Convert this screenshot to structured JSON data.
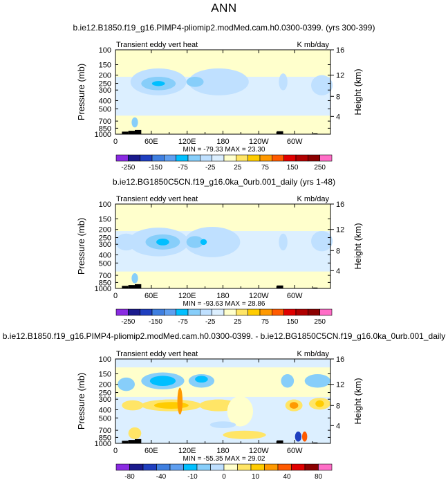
{
  "page": {
    "title": "ANN"
  },
  "chart_data": [
    {
      "type": "heatmap",
      "title": "b.ie12.B1850.f19_g16.PIMP4-pliomip2.modMed.cam.h0.0300-0399. (yrs 300-399)",
      "left_label": "Transient eddy vert heat",
      "right_label": "K mb/day",
      "ylabel": "Pressure (mb)",
      "ylabel_right": "Height (km)",
      "x_ticks": [
        "0",
        "60E",
        "120E",
        "180",
        "120W",
        "60W"
      ],
      "y_ticks": [
        "100",
        "150",
        "200",
        "250",
        "300",
        "400",
        "500",
        "700",
        "850",
        "1000"
      ],
      "y_right_ticks": [
        "16",
        "12",
        "8",
        "4"
      ],
      "stats": "MIN = -79.33   MAX = 23.30",
      "colorbar": {
        "labels": [
          "-250",
          "-150",
          "-75",
          "-25",
          "25",
          "75",
          "150",
          "250"
        ],
        "colors": [
          "#8a2be2",
          "#1a1a8c",
          "#1f3fbf",
          "#3f7fe0",
          "#5f9ff0",
          "#00bfff",
          "#87cefa",
          "#bfe0ff",
          "#dcefff",
          "#ffffcc",
          "#ffe566",
          "#ffcc00",
          "#ff9900",
          "#ff5a00",
          "#e00000",
          "#b00000",
          "#8b0000",
          "#ff6ec7"
        ]
      }
    },
    {
      "type": "heatmap",
      "title": "b.ie12.BG1850C5CN.f19_g16.0ka_0urb.001_daily (yrs 1-48)",
      "left_label": "Transient eddy vert heat",
      "right_label": "K mb/day",
      "ylabel": "Pressure (mb)",
      "ylabel_right": "Height (km)",
      "x_ticks": [
        "0",
        "60E",
        "120E",
        "180",
        "120W",
        "60W"
      ],
      "y_ticks": [
        "100",
        "150",
        "200",
        "250",
        "300",
        "400",
        "500",
        "700",
        "850",
        "1000"
      ],
      "y_right_ticks": [
        "16",
        "12",
        "8",
        "4"
      ],
      "stats": "MIN = -93.63   MAX = 28.86",
      "colorbar": {
        "labels": [
          "-250",
          "-150",
          "-75",
          "-25",
          "25",
          "75",
          "150",
          "250"
        ],
        "colors": [
          "#8a2be2",
          "#1a1a8c",
          "#1f3fbf",
          "#3f7fe0",
          "#5f9ff0",
          "#00bfff",
          "#87cefa",
          "#bfe0ff",
          "#dcefff",
          "#ffffcc",
          "#ffe566",
          "#ffcc00",
          "#ff9900",
          "#ff5a00",
          "#e00000",
          "#b00000",
          "#8b0000",
          "#ff6ec7"
        ]
      }
    },
    {
      "type": "heatmap",
      "title": "b.ie12.B1850.f19_g16.PIMP4-pliomip2.modMed.cam.h0.0300-0399. - b.ie12.BG1850C5CN.f19_g16.0ka_0urb.001_daily",
      "left_label": "Transient eddy vert heat",
      "right_label": "K mb/day",
      "ylabel": "Pressure (mb)",
      "ylabel_right": "Height (km)",
      "x_ticks": [
        "0",
        "60E",
        "120E",
        "180",
        "120W",
        "60W"
      ],
      "y_ticks": [
        "100",
        "150",
        "200",
        "250",
        "300",
        "400",
        "500",
        "700",
        "850",
        "1000"
      ],
      "y_right_ticks": [
        "16",
        "12",
        "8",
        "4"
      ],
      "stats": "MIN = -55.35   MAX = 29.02",
      "colorbar": {
        "labels": [
          "-80",
          "-40",
          "-10",
          "0",
          "10",
          "40",
          "80"
        ],
        "colors": [
          "#8a2be2",
          "#1a1a8c",
          "#1f3fbf",
          "#3f7fe0",
          "#5f9ff0",
          "#00bfff",
          "#87cefa",
          "#bfe0ff",
          "#ffffcc",
          "#ffe566",
          "#ffcc00",
          "#ff9900",
          "#ff5a00",
          "#e00000",
          "#8b0000",
          "#ff6ec7"
        ]
      }
    }
  ]
}
